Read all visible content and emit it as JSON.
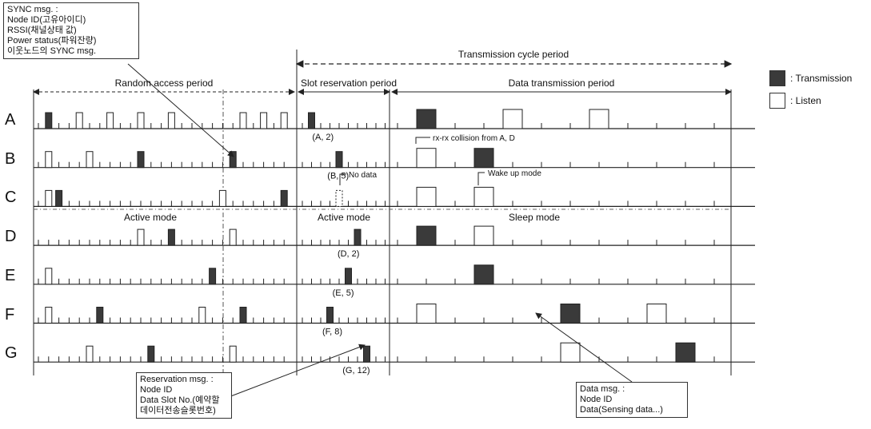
{
  "periods": {
    "transmission_cycle": "Transmission cycle period",
    "random_access": "Random access period",
    "slot_reservation": "Slot reservation period",
    "data_transmission": "Data transmission period"
  },
  "modes": {
    "active_left": "Active mode",
    "active_mid": "Active mode",
    "sleep": "Sleep mode"
  },
  "annotations": {
    "collision": "rx-rx collision from A, D",
    "no_data": "No data",
    "wake_up": "Wake up mode"
  },
  "legend": {
    "transmission": ": Transmission",
    "listen": ": Listen",
    "transmission_color": "#3a3a3a",
    "listen_color": "#ffffff"
  },
  "callouts": {
    "sync": [
      "SYNC msg. :",
      "Node ID(고유아이디)",
      "RSSI(채널상태 값)",
      "Power status(파워잔량)",
      "이웃노드의 SYNC msg."
    ],
    "reservation": [
      "Reservation msg. :",
      "Node ID",
      "Data Slot No.(예약할",
      "데이터전송슬롯번호)"
    ],
    "data": [
      "Data msg. :",
      "Node ID",
      "Data(Sensing data...)"
    ]
  },
  "nodes": [
    {
      "name": "A",
      "random": [
        {
          "type": "tx",
          "s": 1
        },
        {
          "type": "rx",
          "s": 4
        },
        {
          "type": "rx",
          "s": 7
        },
        {
          "type": "rx",
          "s": 10
        },
        {
          "type": "rx",
          "s": 13
        },
        {
          "type": "rx",
          "s": 20
        },
        {
          "type": "rx",
          "s": 22
        },
        {
          "type": "rx",
          "s": 24
        }
      ],
      "slot": {
        "s": 1,
        "type": "tx"
      },
      "slot_label": "(A, 2)",
      "data": [
        {
          "type": "tx",
          "slot": 1
        },
        {
          "type": "rx",
          "slot": 4
        },
        {
          "type": "rx",
          "slot": 7
        }
      ]
    },
    {
      "name": "B",
      "random": [
        {
          "type": "rx",
          "s": 1
        },
        {
          "type": "rx",
          "s": 5
        },
        {
          "type": "tx",
          "s": 10
        },
        {
          "type": "tx",
          "s": 19
        }
      ],
      "slot": {
        "s": 4,
        "type": "tx"
      },
      "slot_label": "(B, 5)",
      "data": [
        {
          "type": "rx",
          "slot": 1
        },
        {
          "type": "tx",
          "slot": 3
        }
      ]
    },
    {
      "name": "C",
      "random": [
        {
          "type": "rx",
          "s": 1
        },
        {
          "type": "tx",
          "s": 2
        },
        {
          "type": "rx",
          "s": 18
        },
        {
          "type": "tx",
          "s": 24
        }
      ],
      "slot": {
        "s": 4,
        "type": "rx"
      },
      "slot_label": "",
      "data": [
        {
          "type": "rx",
          "slot": 1
        },
        {
          "type": "rx",
          "slot": 3
        }
      ]
    },
    {
      "name": "D",
      "random": [
        {
          "type": "rx",
          "s": 10
        },
        {
          "type": "tx",
          "s": 13
        },
        {
          "type": "rx",
          "s": 19
        }
      ],
      "slot": {
        "s": 6,
        "type": "tx"
      },
      "slot_label": "(D, 2)",
      "data": [
        {
          "type": "tx",
          "slot": 1
        },
        {
          "type": "rx",
          "slot": 3
        }
      ]
    },
    {
      "name": "E",
      "random": [
        {
          "type": "rx",
          "s": 1
        },
        {
          "type": "tx",
          "s": 17
        }
      ],
      "slot": {
        "s": 5,
        "type": "tx"
      },
      "slot_label": "(E, 5)",
      "data": [
        {
          "type": "tx",
          "slot": 3
        }
      ]
    },
    {
      "name": "F",
      "random": [
        {
          "type": "rx",
          "s": 1
        },
        {
          "type": "tx",
          "s": 6
        },
        {
          "type": "rx",
          "s": 16
        },
        {
          "type": "tx",
          "s": 20
        }
      ],
      "slot": {
        "s": 3,
        "type": "tx"
      },
      "slot_label": "(F, 8)",
      "data": [
        {
          "type": "rx",
          "slot": 1
        },
        {
          "type": "tx",
          "slot": 6
        },
        {
          "type": "rx",
          "slot": 9
        }
      ]
    },
    {
      "name": "G",
      "random": [
        {
          "type": "rx",
          "s": 5
        },
        {
          "type": "tx",
          "s": 11
        },
        {
          "type": "rx",
          "s": 19
        }
      ],
      "slot": {
        "s": 7,
        "type": "tx"
      },
      "slot_label": "(G, 12)",
      "data": [
        {
          "type": "rx",
          "slot": 6
        },
        {
          "type": "tx",
          "slot": 10
        }
      ]
    }
  ]
}
